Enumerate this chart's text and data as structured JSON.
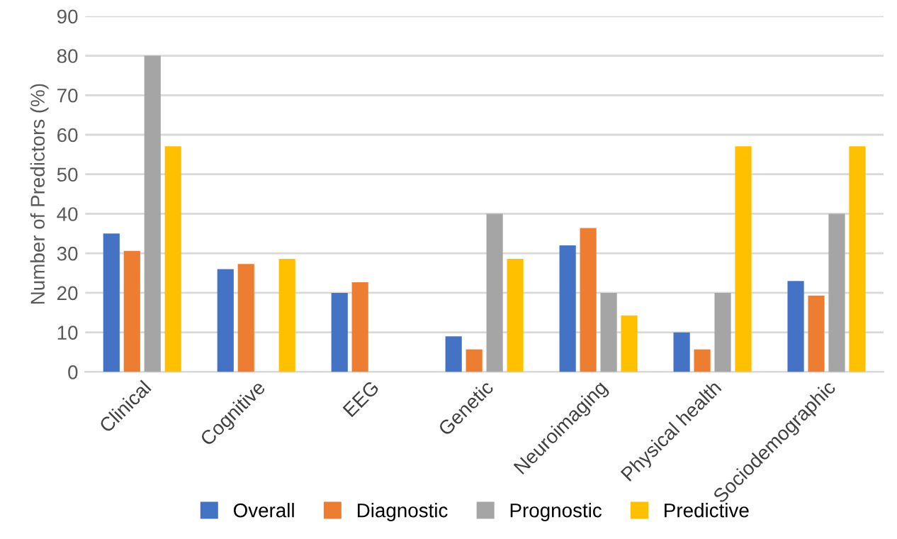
{
  "chart_data": {
    "type": "bar",
    "ylabel": "Number of Predictors (%)",
    "categories": [
      "Clinical",
      "Cognitive",
      "EEG",
      "Genetic",
      "Neuroimaging",
      "Physical health",
      "Sociodemographic"
    ],
    "series": [
      {
        "name": "Overall",
        "color": "#4472c4",
        "values": [
          35,
          26,
          20,
          9,
          32,
          10,
          23
        ]
      },
      {
        "name": "Diagnostic",
        "color": "#ed7d31",
        "values": [
          30.6,
          27.3,
          22.7,
          5.7,
          36.4,
          5.7,
          19.3
        ]
      },
      {
        "name": "Prognostic",
        "color": "#a5a5a5",
        "values": [
          80,
          0,
          0,
          40,
          20,
          20,
          40
        ]
      },
      {
        "name": "Predictive",
        "color": "#ffc000",
        "values": [
          57.1,
          28.6,
          0,
          28.6,
          14.3,
          57.1,
          57.1
        ]
      }
    ],
    "ylim": [
      0,
      90
    ],
    "yticks": [
      0,
      10,
      20,
      30,
      40,
      50,
      60,
      70,
      80,
      90
    ],
    "grid": "y",
    "legend": "bottom"
  }
}
